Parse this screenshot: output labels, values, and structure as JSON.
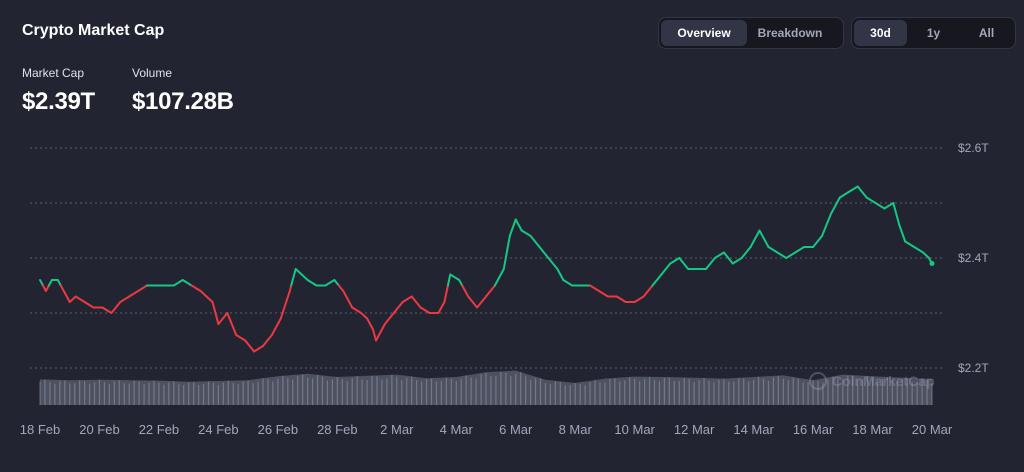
{
  "header": {
    "title": "Crypto Market Cap",
    "market_cap_label": "Market Cap",
    "market_cap_value": "$2.39T",
    "volume_label": "Volume",
    "volume_value": "$107.28B"
  },
  "view_toggle": {
    "options": [
      "Overview",
      "Breakdown"
    ],
    "selected": "Overview"
  },
  "range_toggle": {
    "options": [
      "30d",
      "1y",
      "All"
    ],
    "selected": "30d"
  },
  "watermark": "CoinMarketCap",
  "colors": {
    "background": "#222531",
    "up": "#16c784",
    "down": "#ea3943",
    "volume": "#a1a7bb",
    "grid": "#a1a7bb",
    "axis_text": "#a1a7bb"
  },
  "chart_data": {
    "type": "line",
    "baseline": 2.35,
    "y_axis": {
      "ticks": [
        "$2.2T",
        "$2.4T",
        "$2.6T"
      ],
      "tick_values": [
        2.2,
        2.4,
        2.6
      ],
      "range": [
        2.1,
        2.65
      ],
      "unit": "T",
      "position": "right"
    },
    "x_axis": {
      "ticks": [
        "18 Feb",
        "20 Feb",
        "22 Feb",
        "24 Feb",
        "26 Feb",
        "28 Feb",
        "2 Mar",
        "4 Mar",
        "6 Mar",
        "8 Mar",
        "10 Mar",
        "12 Mar",
        "14 Mar",
        "16 Mar",
        "18 Mar",
        "20 Mar"
      ],
      "range": [
        "18 Feb",
        "20 Mar"
      ]
    },
    "grid": true,
    "series": [
      {
        "values": [
          [
            0.0,
            2.36
          ],
          [
            0.2,
            2.34
          ],
          [
            0.4,
            2.36
          ],
          [
            0.6,
            2.36
          ],
          [
            0.8,
            2.34
          ],
          [
            1.0,
            2.32
          ],
          [
            1.2,
            2.33
          ],
          [
            1.5,
            2.32
          ],
          [
            1.8,
            2.31
          ],
          [
            2.1,
            2.31
          ],
          [
            2.4,
            2.3
          ],
          [
            2.7,
            2.32
          ],
          [
            3.0,
            2.33
          ],
          [
            3.3,
            2.34
          ],
          [
            3.6,
            2.35
          ],
          [
            3.9,
            2.35
          ],
          [
            4.2,
            2.35
          ],
          [
            4.5,
            2.35
          ],
          [
            4.8,
            2.36
          ],
          [
            5.1,
            2.35
          ],
          [
            5.4,
            2.34
          ],
          [
            5.6,
            2.33
          ],
          [
            5.8,
            2.32
          ],
          [
            6.0,
            2.28
          ],
          [
            6.3,
            2.3
          ],
          [
            6.6,
            2.26
          ],
          [
            6.9,
            2.25
          ],
          [
            7.2,
            2.23
          ],
          [
            7.5,
            2.24
          ],
          [
            7.8,
            2.26
          ],
          [
            8.1,
            2.29
          ],
          [
            8.4,
            2.34
          ],
          [
            8.6,
            2.38
          ],
          [
            8.8,
            2.37
          ],
          [
            9.0,
            2.36
          ],
          [
            9.3,
            2.35
          ],
          [
            9.6,
            2.35
          ],
          [
            9.9,
            2.36
          ],
          [
            10.2,
            2.34
          ],
          [
            10.5,
            2.31
          ],
          [
            10.8,
            2.3
          ],
          [
            11.0,
            2.29
          ],
          [
            11.2,
            2.27
          ],
          [
            11.3,
            2.25
          ],
          [
            11.6,
            2.28
          ],
          [
            11.9,
            2.3
          ],
          [
            12.2,
            2.32
          ],
          [
            12.5,
            2.33
          ],
          [
            12.8,
            2.31
          ],
          [
            13.1,
            2.3
          ],
          [
            13.4,
            2.3
          ],
          [
            13.6,
            2.32
          ],
          [
            13.8,
            2.37
          ],
          [
            14.1,
            2.36
          ],
          [
            14.4,
            2.33
          ],
          [
            14.7,
            2.31
          ],
          [
            15.0,
            2.33
          ],
          [
            15.3,
            2.35
          ],
          [
            15.6,
            2.38
          ],
          [
            15.8,
            2.44
          ],
          [
            16.0,
            2.47
          ],
          [
            16.2,
            2.45
          ],
          [
            16.5,
            2.44
          ],
          [
            16.8,
            2.42
          ],
          [
            17.1,
            2.4
          ],
          [
            17.4,
            2.38
          ],
          [
            17.6,
            2.36
          ],
          [
            17.9,
            2.35
          ],
          [
            18.2,
            2.35
          ],
          [
            18.5,
            2.35
          ],
          [
            18.8,
            2.34
          ],
          [
            19.1,
            2.33
          ],
          [
            19.4,
            2.33
          ],
          [
            19.7,
            2.32
          ],
          [
            20.0,
            2.32
          ],
          [
            20.3,
            2.33
          ],
          [
            20.6,
            2.35
          ],
          [
            20.9,
            2.37
          ],
          [
            21.2,
            2.39
          ],
          [
            21.5,
            2.4
          ],
          [
            21.8,
            2.38
          ],
          [
            22.1,
            2.38
          ],
          [
            22.4,
            2.38
          ],
          [
            22.7,
            2.4
          ],
          [
            23.0,
            2.41
          ],
          [
            23.3,
            2.39
          ],
          [
            23.6,
            2.4
          ],
          [
            23.9,
            2.42
          ],
          [
            24.2,
            2.45
          ],
          [
            24.5,
            2.42
          ],
          [
            24.8,
            2.41
          ],
          [
            25.1,
            2.4
          ],
          [
            25.4,
            2.41
          ],
          [
            25.7,
            2.42
          ],
          [
            26.0,
            2.42
          ],
          [
            26.3,
            2.44
          ],
          [
            26.6,
            2.48
          ],
          [
            26.9,
            2.51
          ],
          [
            27.2,
            2.52
          ],
          [
            27.5,
            2.53
          ],
          [
            27.8,
            2.51
          ],
          [
            28.1,
            2.5
          ],
          [
            28.4,
            2.49
          ],
          [
            28.7,
            2.5
          ],
          [
            28.9,
            2.46
          ],
          [
            29.1,
            2.43
          ],
          [
            29.4,
            2.42
          ],
          [
            29.7,
            2.41
          ],
          [
            29.9,
            2.4
          ],
          [
            30.0,
            2.39
          ]
        ]
      }
    ],
    "volume": {
      "values": [
        [
          0,
          0.64
        ],
        [
          1,
          0.62
        ],
        [
          2,
          0.63
        ],
        [
          3,
          0.62
        ],
        [
          4,
          0.61
        ],
        [
          5,
          0.58
        ],
        [
          6,
          0.6
        ],
        [
          7,
          0.62
        ],
        [
          8,
          0.72
        ],
        [
          9,
          0.78
        ],
        [
          10,
          0.7
        ],
        [
          11,
          0.73
        ],
        [
          12,
          0.76
        ],
        [
          13,
          0.67
        ],
        [
          14,
          0.7
        ],
        [
          15,
          0.82
        ],
        [
          16,
          0.86
        ],
        [
          17,
          0.63
        ],
        [
          18,
          0.55
        ],
        [
          19,
          0.66
        ],
        [
          20,
          0.71
        ],
        [
          21,
          0.7
        ],
        [
          22,
          0.68
        ],
        [
          23,
          0.66
        ],
        [
          24,
          0.7
        ],
        [
          25,
          0.74
        ],
        [
          26,
          0.62
        ],
        [
          27,
          0.76
        ],
        [
          28,
          0.72
        ],
        [
          29,
          0.68
        ],
        [
          30,
          0.65
        ]
      ]
    }
  }
}
